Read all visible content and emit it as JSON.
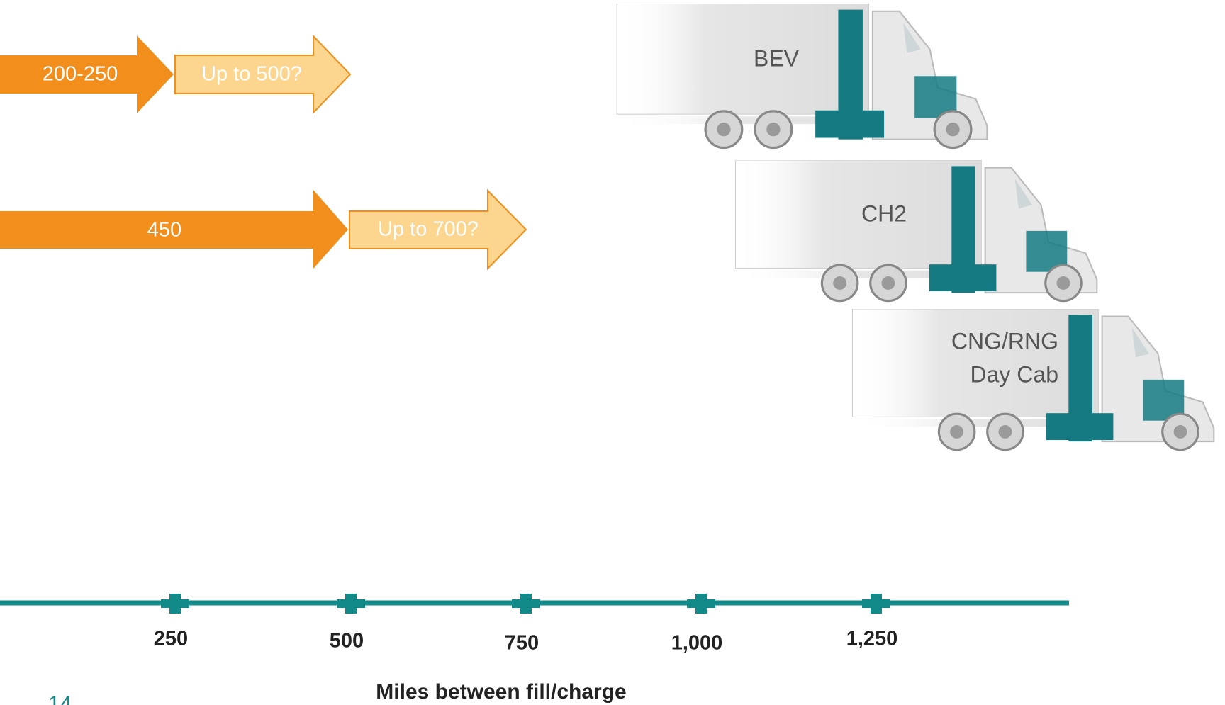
{
  "rows": [
    {
      "truck": "BEV",
      "current": "200-250",
      "future": "Up to 500?"
    },
    {
      "truck": "CH2",
      "current": "450",
      "future": "Up to 700?"
    },
    {
      "truck_lines": [
        "CNG/RNG",
        "Day Cab"
      ]
    }
  ],
  "axis": {
    "ticks": [
      "250",
      "500",
      "750",
      "1,000",
      "1,250"
    ],
    "title": "Miles between fill/charge"
  },
  "page_number": "14"
}
